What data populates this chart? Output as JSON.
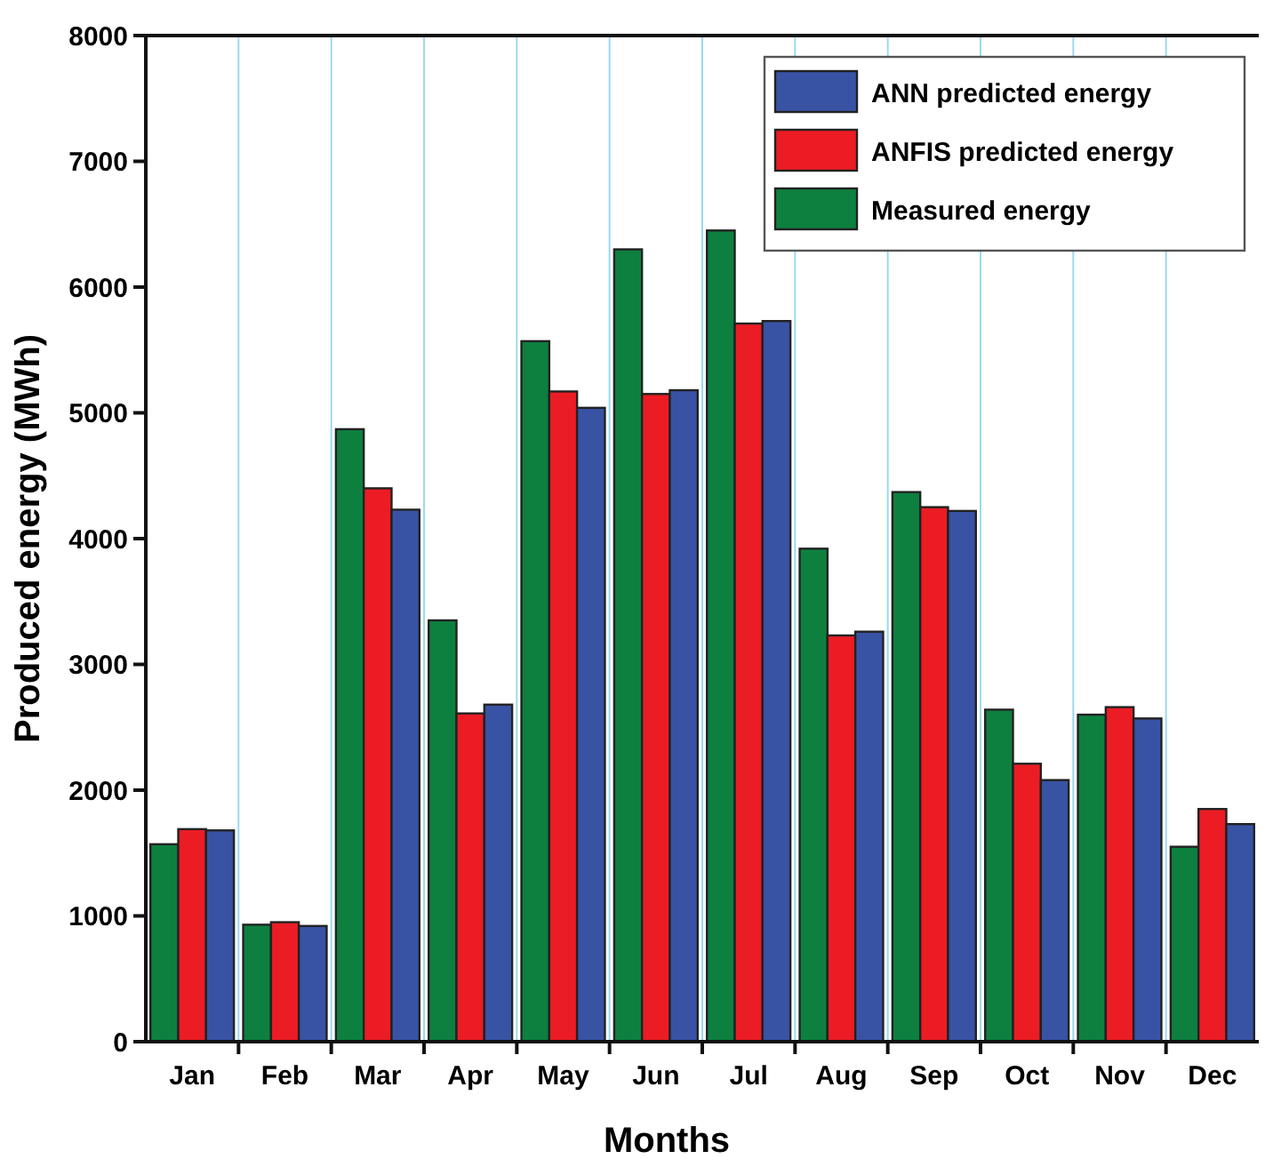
{
  "chart_data": {
    "type": "bar",
    "xlabel": "Months",
    "ylabel": "Produced energy (MWh)",
    "categories": [
      "Jan",
      "Feb",
      "Mar",
      "Apr",
      "May",
      "Jun",
      "Jul",
      "Aug",
      "Sep",
      "Oct",
      "Nov",
      "Dec"
    ],
    "series": [
      {
        "name": "Measured energy",
        "color": "#0d8040",
        "values": [
          1570,
          930,
          4870,
          3350,
          5570,
          6300,
          6450,
          3920,
          4370,
          2640,
          2600,
          1550
        ]
      },
      {
        "name": "ANFIS predicted energy",
        "color": "#ec1c24",
        "values": [
          1690,
          950,
          4400,
          2610,
          5170,
          5150,
          5710,
          3230,
          4250,
          2210,
          2660,
          1850
        ]
      },
      {
        "name": "ANN predicted energy",
        "color": "#3953a4",
        "values": [
          1680,
          920,
          4230,
          2680,
          5040,
          5180,
          5730,
          3260,
          4220,
          2080,
          2570,
          1730
        ]
      }
    ],
    "ylim": [
      0,
      8000
    ],
    "yticks": [
      0,
      1000,
      2000,
      3000,
      4000,
      5000,
      6000,
      7000,
      8000
    ],
    "grid": "x",
    "legend": "top right"
  }
}
